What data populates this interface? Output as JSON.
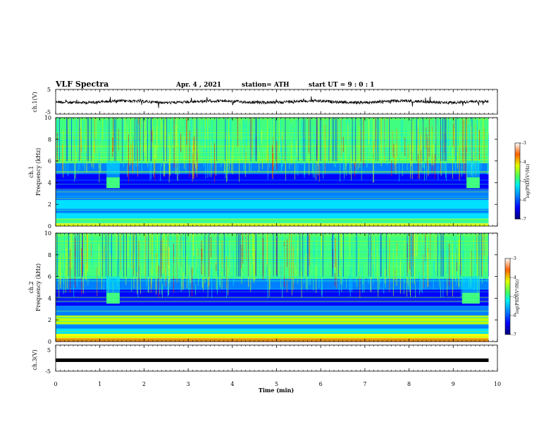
{
  "header": {
    "title": "VLF Spectra",
    "date": "Apr. 4 , 2021",
    "station": "station= ATH",
    "start": "start  UT =   9 : 0  : 1"
  },
  "chart_data": [
    {
      "type": "line",
      "panel": "ch1-waveform",
      "ylabel": "ch.1(V)",
      "ylim": [
        -5,
        5
      ],
      "yticks": [
        "5",
        "-5"
      ],
      "xlim": [
        0,
        10
      ],
      "description_series": "noisy waveform centered near 0 V"
    },
    {
      "type": "heatmap",
      "panel": "ch1-spectrogram",
      "ylabel_top": "ch.1",
      "ylabel": "Frequency (kHz)",
      "ylim": [
        0,
        10
      ],
      "yticks": [
        "0",
        "2",
        "4",
        "6",
        "8",
        "10"
      ],
      "xlim": [
        0,
        10
      ],
      "colorbar": {
        "label": "log(PSD)(V²/Hz)",
        "range": [
          -7,
          -3
        ],
        "ticks": [
          "-3",
          "-4",
          "-5",
          "-6",
          "-7"
        ]
      },
      "features": [
        {
          "t_start": 1.15,
          "t_end": 1.45,
          "f_center": 4.0
        },
        {
          "t_start": 9.3,
          "t_end": 9.6,
          "f_center": 4.0
        }
      ]
    },
    {
      "type": "heatmap",
      "panel": "ch2-spectrogram",
      "ylabel_top": "ch.2",
      "ylabel": "Frequency (kHz)",
      "ylim": [
        0,
        10
      ],
      "yticks": [
        "0",
        "2",
        "4",
        "6",
        "8",
        "10"
      ],
      "xlim": [
        0,
        10
      ],
      "colorbar": {
        "label": "log(PSD)(V²/Hz)",
        "range": [
          -7,
          -3
        ],
        "ticks": [
          "-3",
          "-4",
          "-5",
          "-6",
          "-7"
        ]
      },
      "features": [
        {
          "t_start": 1.15,
          "t_end": 1.45,
          "f_center": 4.0
        },
        {
          "t_start": 9.2,
          "t_end": 9.6,
          "f_center": 4.0
        }
      ]
    },
    {
      "type": "line",
      "panel": "ch3-waveform",
      "ylabel": "ch.3(V)",
      "ylim": [
        -5,
        5
      ],
      "yticks": [
        "5",
        "-5"
      ],
      "xlim": [
        0,
        10
      ],
      "series": [
        {
          "x": [
            0,
            9.8
          ],
          "y": [
            0,
            0
          ]
        }
      ]
    }
  ],
  "xaxis": {
    "label": "Time  (min)",
    "ticks": [
      "0",
      "1",
      "2",
      "3",
      "4",
      "5",
      "6",
      "7",
      "8",
      "9",
      "10"
    ]
  },
  "colors": {
    "cmap": [
      "#00008b",
      "#0000ff",
      "#0080ff",
      "#00e0ff",
      "#40ff80",
      "#c0ff00",
      "#ffff00",
      "#ff8000",
      "#ff0000",
      "#a00000"
    ]
  }
}
